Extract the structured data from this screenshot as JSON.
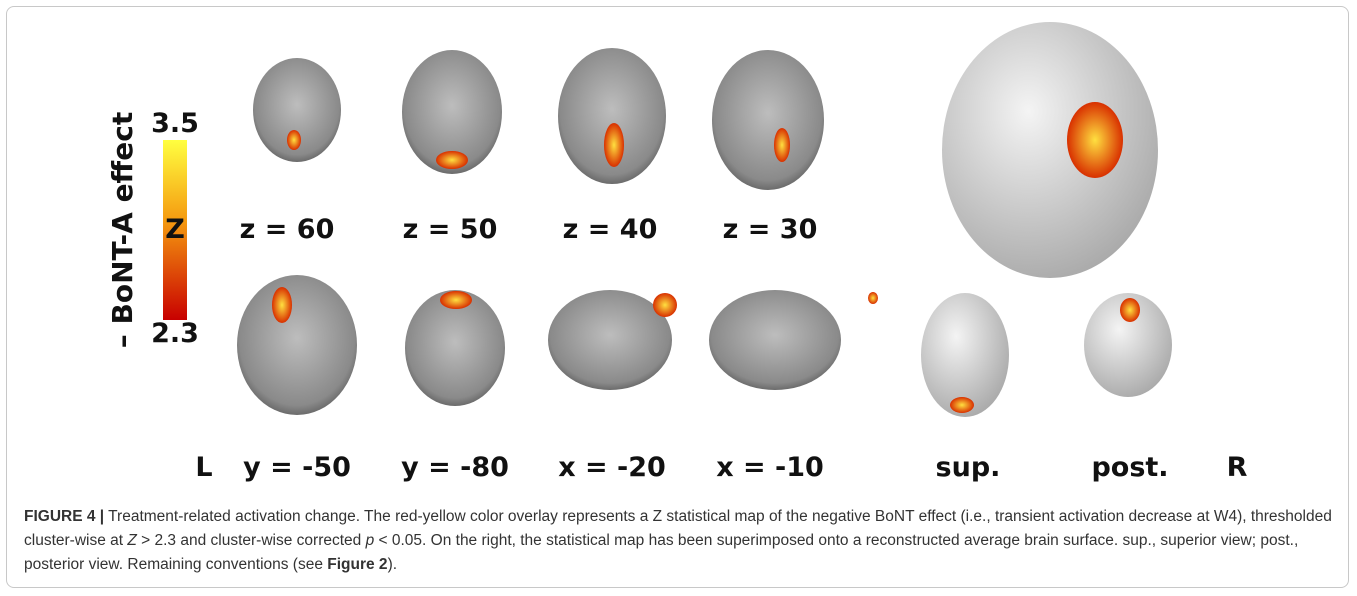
{
  "figure": {
    "colorbar": {
      "title": "– BoNT-A effect",
      "max": "3.5",
      "mid": "Z",
      "min": "2.3"
    },
    "top_labels": [
      "z = 60",
      "z = 50",
      "z = 40",
      "z = 30"
    ],
    "bottom_labels": [
      "L",
      "y = -50",
      "y = -80",
      "x = -20",
      "x = -10",
      "sup.",
      "post.",
      "R"
    ]
  },
  "caption": {
    "label": "FIGURE 4 |",
    "parts": [
      " Treatment-related activation change. The red-yellow color overlay represents a Z statistical map of the negative BoNT effect (i.e., transient activation decrease at W4), thresholded cluster-wise at ",
      "Z",
      " > 2.3 and cluster-wise corrected ",
      "p",
      " < 0.05. On the right, the statistical map has been superimposed onto a reconstructed average brain surface. sup., superior view; post., posterior view. Remaining conventions (see ",
      "Figure 2",
      ")."
    ]
  }
}
